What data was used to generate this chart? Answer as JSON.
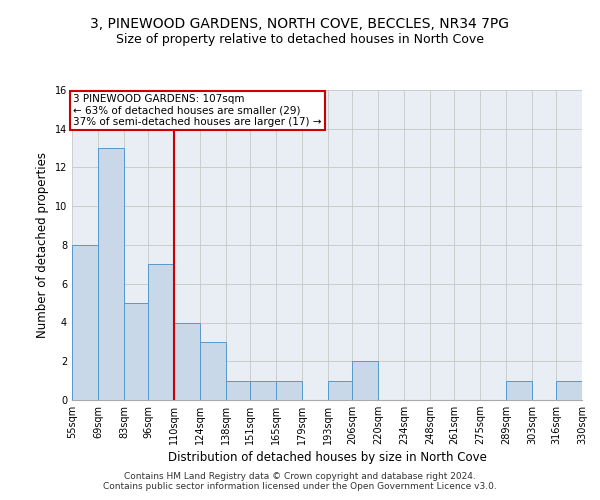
{
  "title1": "3, PINEWOOD GARDENS, NORTH COVE, BECCLES, NR34 7PG",
  "title2": "Size of property relative to detached houses in North Cove",
  "xlabel": "Distribution of detached houses by size in North Cove",
  "ylabel": "Number of detached properties",
  "footer1": "Contains HM Land Registry data © Crown copyright and database right 2024.",
  "footer2": "Contains public sector information licensed under the Open Government Licence v3.0.",
  "bins": [
    55,
    69,
    83,
    96,
    110,
    124,
    138,
    151,
    165,
    179,
    193,
    206,
    220,
    234,
    248,
    261,
    275,
    289,
    303,
    316,
    330
  ],
  "bin_labels": [
    "55sqm",
    "69sqm",
    "83sqm",
    "96sqm",
    "110sqm",
    "124sqm",
    "138sqm",
    "151sqm",
    "165sqm",
    "179sqm",
    "193sqm",
    "206sqm",
    "220sqm",
    "234sqm",
    "248sqm",
    "261sqm",
    "275sqm",
    "289sqm",
    "303sqm",
    "316sqm",
    "330sqm"
  ],
  "values": [
    8,
    13,
    5,
    7,
    4,
    3,
    1,
    1,
    1,
    0,
    1,
    2,
    0,
    0,
    0,
    0,
    0,
    1,
    0,
    1
  ],
  "bar_color": "#c8d8e8",
  "bar_edge_color": "#5599cc",
  "vline_x": 110,
  "vline_color": "#cc0000",
  "annotation_text": "3 PINEWOOD GARDENS: 107sqm\n← 63% of detached houses are smaller (29)\n37% of semi-detached houses are larger (17) →",
  "annotation_box_color": "#cc0000",
  "ylim": [
    0,
    16
  ],
  "yticks": [
    0,
    2,
    4,
    6,
    8,
    10,
    12,
    14,
    16
  ],
  "grid_color": "#cccccc",
  "bg_color": "#e8eef4",
  "title_fontsize": 10,
  "subtitle_fontsize": 9,
  "axis_label_fontsize": 8.5,
  "tick_fontsize": 7,
  "footer_fontsize": 6.5,
  "annotation_fontsize": 7.5
}
